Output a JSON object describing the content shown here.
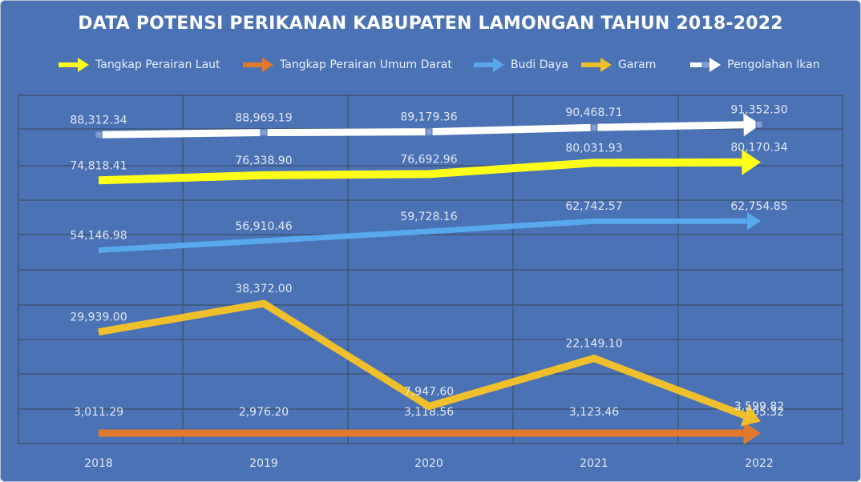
{
  "chart_data": {
    "type": "line",
    "title": "DATA POTENSI PERIKANAN KABUPATEN LAMONGAN TAHUN 2018-2022",
    "categories": [
      "2018",
      "2019",
      "2020",
      "2021",
      "2022"
    ],
    "legend_position": "top",
    "grid": true,
    "series": [
      {
        "name": "Tangkap Perairan Laut",
        "color": "#ffff1a",
        "values": [
          74818.41,
          76338.9,
          76692.96,
          80031.93,
          80170.34
        ],
        "labels": [
          "74,818.41",
          "76,338.90",
          "76,692.96",
          "80,031.93",
          "80,170.34"
        ]
      },
      {
        "name": "Tangkap Perairan Umum Darat",
        "color": "#e0782e",
        "values": [
          3011.29,
          2976.2,
          3118.56,
          3123.46,
          3105.32
        ],
        "labels": [
          "3,011.29",
          "2,976.20",
          "3,118.56",
          "3,123.46",
          "3,105.32"
        ]
      },
      {
        "name": "Budi Daya",
        "color": "#58a8ee",
        "values": [
          54146.98,
          56910.46,
          59728.16,
          62742.57,
          62754.85
        ],
        "labels": [
          "54,146.98",
          "56,910.46",
          "59,728.16",
          "62,742.57",
          "62,754.85"
        ]
      },
      {
        "name": "Garam",
        "color": "#f0bf2c",
        "values": [
          29939.0,
          38372.0,
          7947.6,
          22149.1,
          3599.82
        ],
        "labels": [
          "29,939.00",
          "38,372.00",
          "7,947.60",
          "22,149.10",
          "3,599.82"
        ]
      },
      {
        "name": "Pengolahan Ikan",
        "color": "#ffffff",
        "values": [
          88312.34,
          88969.19,
          89179.36,
          90468.71,
          91352.3
        ],
        "labels": [
          "88,312.34",
          "88,969.19",
          "89,179.36",
          "90,468.71",
          "91,352.30"
        ]
      }
    ]
  }
}
